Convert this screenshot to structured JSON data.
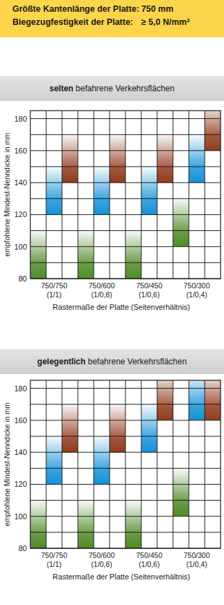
{
  "header": {
    "rows": [
      {
        "label": "Größte Kantenlänge der Platte:",
        "value": "750 mm"
      },
      {
        "label": "Biegezugfestigkeit der Platte:",
        "value": "≥ 5,0 N/mm²"
      }
    ]
  },
  "chart_data": [
    {
      "type": "bar",
      "title": "selten befahrene Verkehrsflächen",
      "ylabel": "empfohlene Mindest-Nenndicke in mm",
      "xlabel": "Rastermaße der Platte (Seitenverhältnis)",
      "categories": [
        [
          "750/750",
          "(1/1)"
        ],
        [
          "750/600",
          "(1/0,8)"
        ],
        [
          "750/450",
          "(1/0,6)"
        ],
        [
          "750/300",
          "(1/0,4)"
        ]
      ],
      "series": [
        {
          "color": "#4f8a26",
          "values": [
            [
              80,
              110
            ],
            [
              80,
              110
            ],
            [
              80,
              110
            ],
            [
              100,
              130
            ]
          ]
        },
        {
          "color": "#1592d8",
          "values": [
            [
              120,
              150
            ],
            [
              120,
              150
            ],
            [
              120,
              150
            ],
            [
              140,
              170
            ]
          ]
        },
        {
          "color": "#933a1c",
          "values": [
            [
              140,
              170
            ],
            [
              140,
              170
            ],
            [
              140,
              170
            ],
            [
              160,
              190
            ]
          ]
        }
      ],
      "ylim": [
        80,
        185
      ],
      "yticks": [
        80,
        100,
        120,
        140,
        160,
        180
      ],
      "grid": true
    },
    {
      "type": "bar",
      "title": "gelegentlich befahrene Verkehrsflächen",
      "ylabel": "empfohlene Mindest-Nenndicke in mm",
      "xlabel": "Rastermaße der Platte (Seitenverhältnis)",
      "categories": [
        [
          "750/750",
          "(1/1)"
        ],
        [
          "750/600",
          "(1/0,8)"
        ],
        [
          "750/450",
          "(1/0,6)"
        ],
        [
          "750/300",
          "(1/0,4)"
        ]
      ],
      "series": [
        {
          "color": "#4f8a26",
          "values": [
            [
              80,
              110
            ],
            [
              80,
              110
            ],
            [
              80,
              110
            ],
            [
              100,
              130
            ]
          ]
        },
        {
          "color": "#1592d8",
          "values": [
            [
              120,
              150
            ],
            [
              120,
              150
            ],
            [
              140,
              170
            ],
            [
              160,
              190
            ]
          ]
        },
        {
          "color": "#933a1c",
          "values": [
            [
              140,
              170
            ],
            [
              140,
              170
            ],
            [
              160,
              190
            ],
            [
              160,
              190
            ]
          ]
        }
      ],
      "ylim": [
        80,
        185
      ],
      "yticks": [
        80,
        100,
        120,
        140,
        160,
        180
      ],
      "grid": true
    }
  ]
}
